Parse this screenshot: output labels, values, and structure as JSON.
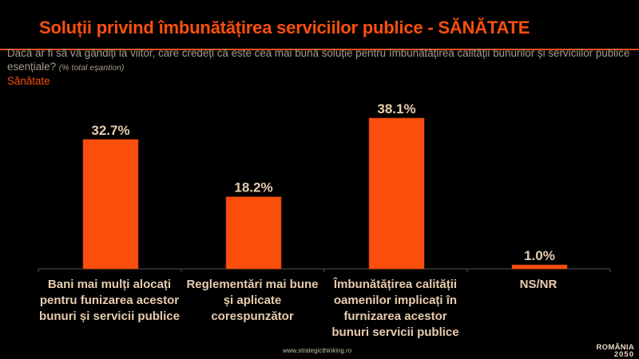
{
  "header": {
    "title": "Soluții privind îmbunătățirea serviciilor publice - SĂNĂTATE",
    "question": "Dacă ar fi să vă gândiți la viitor, care credeți că este cea mai bună soluție pentru îmbunătățirea calității bunurilor și serviciilor publice esențiale?",
    "question_note": "(% total eșantion)",
    "subtitle": "Sănătate"
  },
  "footer": {
    "url": "www.strategicthinking.ro",
    "logo_line1": "ROMÂNIA",
    "logo_line2": "2050"
  },
  "colors": {
    "accent": "#fc4f0e",
    "label": "#e8ccae"
  },
  "chart_data": {
    "type": "bar",
    "title": "Soluții privind îmbunătățirea serviciilor publice - SĂNĂTATE",
    "xlabel": "",
    "ylabel": "",
    "ylim": [
      0,
      40
    ],
    "grid": false,
    "categories": [
      "Bani mai mulți alocați pentru funizarea acestor bunuri și servicii publice",
      "Reglementări mai bune și aplicate corespunzător",
      "Îmbunătățirea calității oamenilor implicați în furnizarea acestor bunuri servicii publice",
      "NS/NR"
    ],
    "values": [
      32.7,
      18.2,
      38.1,
      1.0
    ],
    "data_labels": [
      "32.7%",
      "18.2%",
      "38.1%",
      "1.0%"
    ]
  }
}
